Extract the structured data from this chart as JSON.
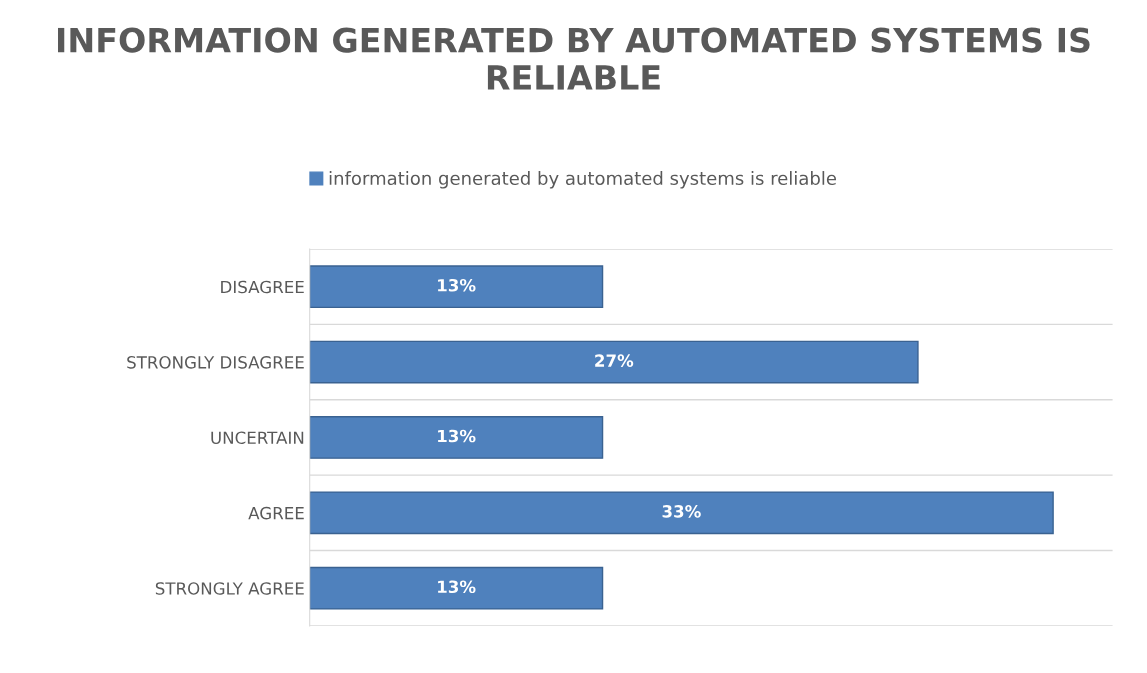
{
  "chart_data": {
    "type": "bar",
    "orientation": "horizontal",
    "title": "INFORMATION GENERATED BY AUTOMATED SYSTEMS IS RELIABLE",
    "categories": [
      "DISAGREE",
      "STRONGLY DISAGREE",
      "UNCERTAIN",
      "AGREE",
      "STRONGLY AGREE"
    ],
    "series": [
      {
        "name": "information generated by automated systems is reliable",
        "color": "#4f81bd",
        "values": [
          13,
          27,
          13,
          33,
          13
        ],
        "value_labels": [
          "13%",
          "27%",
          "13%",
          "33%",
          "13%"
        ]
      }
    ],
    "legend": "top"
  }
}
